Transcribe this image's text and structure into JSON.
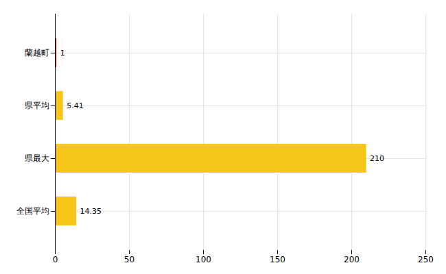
{
  "chart_data": {
    "type": "bar",
    "orientation": "horizontal",
    "categories": [
      "蘭越町",
      "県平均",
      "県最大",
      "全国平均"
    ],
    "values": [
      1,
      5.41,
      210,
      14.35
    ],
    "colors": [
      "#9B1B1B",
      "#F5C518",
      "#F5C518",
      "#F5C518"
    ],
    "xlim": [
      0,
      250
    ],
    "xticks": [
      0,
      50,
      100,
      150,
      200,
      250
    ],
    "grid": true,
    "data_labels": true
  }
}
